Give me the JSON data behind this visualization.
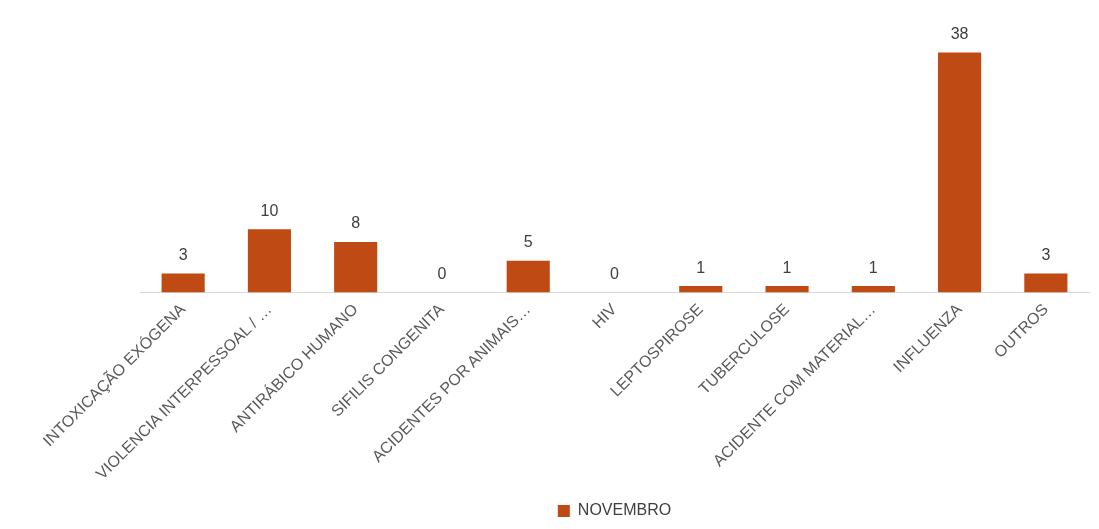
{
  "chart_data": {
    "type": "bar",
    "categories": [
      "INTOXICAÇÃO EXÓGENA",
      "VIOLENCIA INTERPESSOAL / …",
      "ANTIRÁBICO HUMANO",
      "SIFILIS CONGENITA",
      "ACIDENTES POR ANIMAIS…",
      "HIV",
      "LEPTOSPIROSE",
      "TUBERCULOSE",
      "ACIDENTE COM MATERIAL…",
      "INFLUENZA",
      "OUTROS"
    ],
    "series": [
      {
        "name": "NOVEMBRO",
        "color": "#bf4a13",
        "values": [
          3,
          10,
          8,
          0,
          5,
          0,
          1,
          1,
          1,
          38,
          3
        ]
      }
    ],
    "data_labels": true,
    "grid": false,
    "legend": "bottom"
  }
}
